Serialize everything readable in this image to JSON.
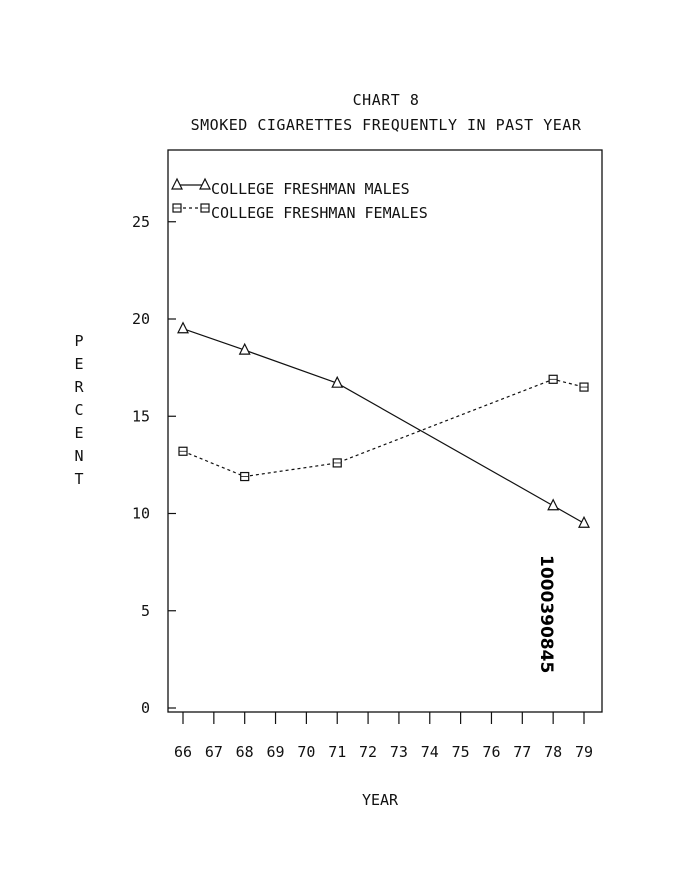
{
  "chart_data": {
    "type": "line",
    "title": "CHART 8",
    "subtitle": "SMOKED CIGARETTES FREQUENTLY IN PAST YEAR",
    "xlabel": "YEAR",
    "ylabel": "PERCENT",
    "x": [
      "66",
      "67",
      "68",
      "69",
      "70",
      "71",
      "72",
      "73",
      "74",
      "75",
      "76",
      "77",
      "78",
      "79"
    ],
    "xlim": [
      66,
      79
    ],
    "ylim": [
      0,
      29
    ],
    "yticks": [
      0,
      5,
      10,
      15,
      20,
      25
    ],
    "grid": false,
    "legend_position": "top-left",
    "series": [
      {
        "name": "COLLEGE FRESHMAN MALES",
        "marker": "triangle",
        "line": "solid",
        "points": [
          [
            66,
            19.5
          ],
          [
            68,
            18.4
          ],
          [
            71,
            16.7
          ],
          [
            78,
            10.4
          ],
          [
            79,
            9.5
          ]
        ]
      },
      {
        "name": "COLLEGE FRESHMAN FEMALES",
        "marker": "square",
        "line": "dashed",
        "points": [
          [
            66,
            13.2
          ],
          [
            68,
            11.9
          ],
          [
            71,
            12.6
          ],
          [
            78,
            16.9
          ],
          [
            79,
            16.5
          ]
        ]
      }
    ],
    "annotation": "1000390845"
  }
}
